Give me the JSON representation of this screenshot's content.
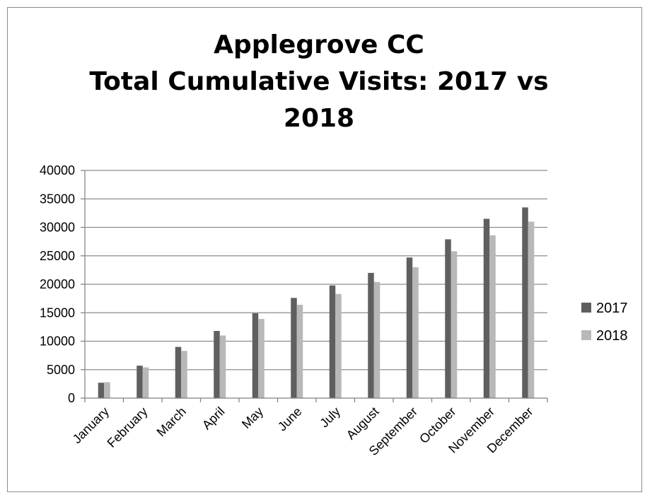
{
  "chart_data": {
    "type": "bar",
    "title_lines": [
      "Applegrove CC",
      "Total Cumulative Visits: 2017 vs",
      "2018"
    ],
    "categories": [
      "January",
      "February",
      "March",
      "April",
      "May",
      "June",
      "July",
      "August",
      "September",
      "October",
      "November",
      "December"
    ],
    "series": [
      {
        "name": "2017",
        "values": [
          2700,
          5700,
          9000,
          11800,
          14900,
          17600,
          19800,
          22000,
          24700,
          27900,
          31500,
          33500
        ]
      },
      {
        "name": "2018",
        "values": [
          2800,
          5400,
          8300,
          11000,
          13900,
          16400,
          18300,
          20400,
          23000,
          25800,
          28600,
          31000
        ]
      }
    ],
    "ylim": [
      0,
      40000
    ],
    "yticks": [
      0,
      5000,
      10000,
      15000,
      20000,
      25000,
      30000,
      35000,
      40000
    ],
    "grid": true,
    "legend_position": "right",
    "colors": {
      "2017": "#5f5f5f",
      "2018": "#b8b8b8",
      "grid": "#8c8c8c",
      "axis": "#7f7f7f"
    }
  }
}
